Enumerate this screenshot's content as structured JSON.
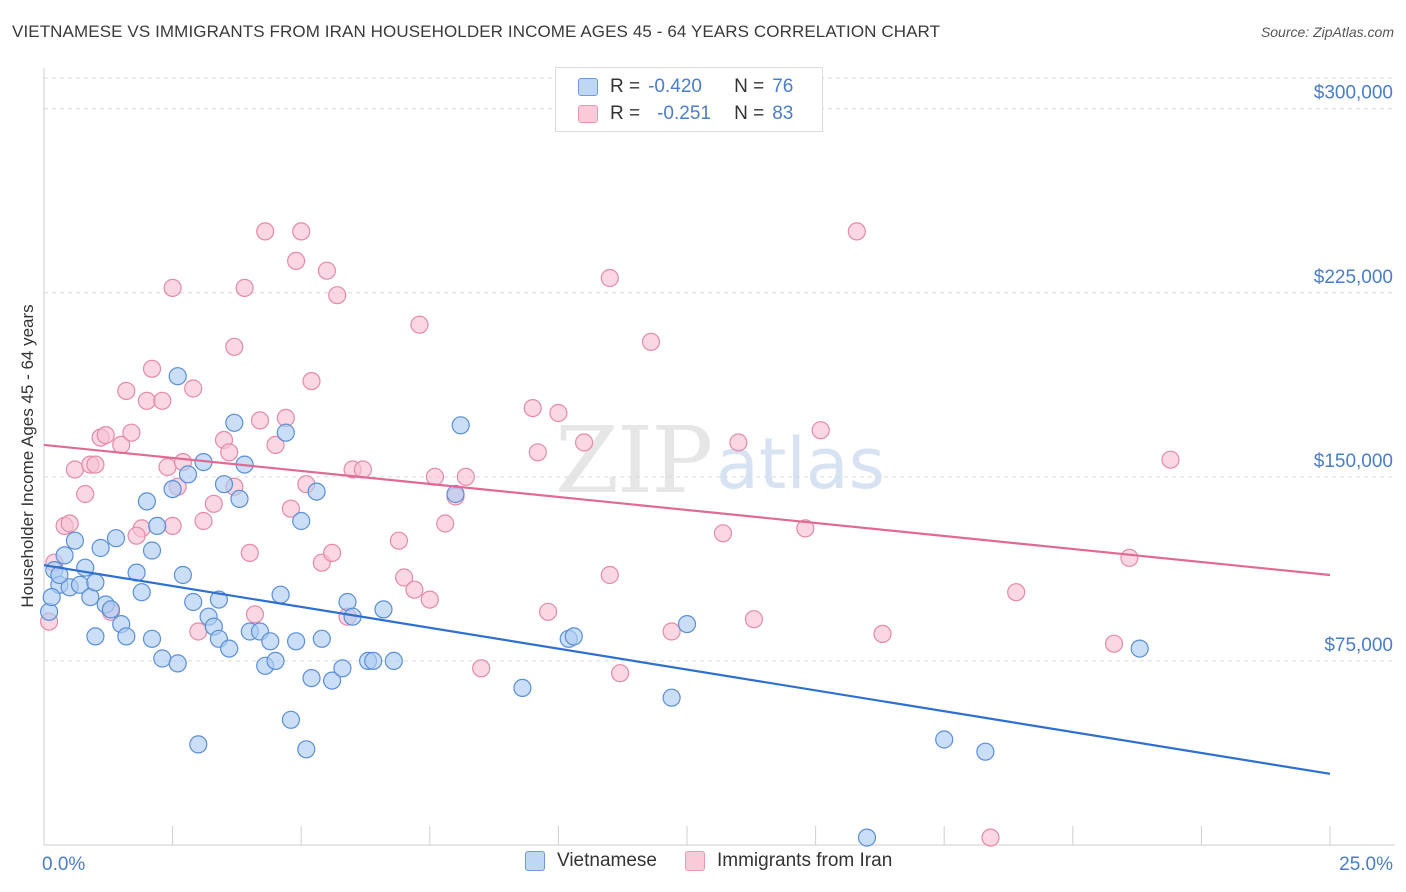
{
  "title": "VIETNAMESE VS IMMIGRANTS FROM IRAN HOUSEHOLDER INCOME AGES 45 - 64 YEARS CORRELATION CHART",
  "source": "Source: ZipAtlas.com",
  "watermark": {
    "zip": "ZIP",
    "atlas": "atlas"
  },
  "legend": {
    "rows": [
      {
        "r_label": "R =",
        "r_value": "-0.420",
        "n_label": "N =",
        "n_value": "76"
      },
      {
        "r_label": "R =",
        "r_value": "-0.251",
        "n_label": "N =",
        "n_value": "83"
      }
    ]
  },
  "bottom_legend": {
    "series1": "Vietnamese",
    "series2": "Immigrants from Iran"
  },
  "colors": {
    "blue_fill": "#aeccf2",
    "blue_stroke": "#5b8fd6",
    "blue_line": "#2e6fd0",
    "pink_fill": "#f7c2d2",
    "pink_stroke": "#e58aa8",
    "pink_line": "#e06a92",
    "tick_label": "#4a7ec7",
    "grid": "#d9d9d9"
  },
  "chart_data": {
    "type": "scatter",
    "title": "VIETNAMESE VS IMMIGRANTS FROM IRAN HOUSEHOLDER INCOME AGES 45 - 64 YEARS CORRELATION CHART",
    "xlabel": "",
    "ylabel": "Householder Income Ages 45 - 64 years",
    "xlim": [
      0,
      25
    ],
    "ylim": [
      0,
      312500
    ],
    "x_tick_labels": [
      "0.0%",
      "25.0%"
    ],
    "y_ticks": [
      75000,
      150000,
      225000,
      300000
    ],
    "y_tick_labels": [
      "$75,000",
      "$150,000",
      "$225,000",
      "$300,000"
    ],
    "grid": true,
    "legend_position": "top-center",
    "series": [
      {
        "name": "Vietnamese",
        "r": -0.42,
        "n": 76,
        "trend": {
          "x": [
            0,
            25
          ],
          "y": [
            114000,
            29000
          ]
        },
        "points": [
          [
            0.1,
            95000
          ],
          [
            0.2,
            112000
          ],
          [
            0.3,
            106000
          ],
          [
            0.4,
            118000
          ],
          [
            0.5,
            105000
          ],
          [
            0.6,
            124000
          ],
          [
            0.7,
            106000
          ],
          [
            0.8,
            113000
          ],
          [
            0.9,
            101000
          ],
          [
            1.0,
            85000
          ],
          [
            1.1,
            121000
          ],
          [
            1.2,
            98000
          ],
          [
            1.3,
            96000
          ],
          [
            1.4,
            125000
          ],
          [
            1.5,
            90000
          ],
          [
            1.6,
            85000
          ],
          [
            1.8,
            111000
          ],
          [
            1.9,
            103000
          ],
          [
            2.0,
            140000
          ],
          [
            2.1,
            120000
          ],
          [
            2.1,
            84000
          ],
          [
            2.2,
            130000
          ],
          [
            2.3,
            76000
          ],
          [
            2.5,
            145000
          ],
          [
            2.6,
            191000
          ],
          [
            2.6,
            74000
          ],
          [
            2.8,
            151000
          ],
          [
            2.9,
            99000
          ],
          [
            3.1,
            156000
          ],
          [
            3.2,
            93000
          ],
          [
            3.3,
            89000
          ],
          [
            3.4,
            84000
          ],
          [
            3.5,
            147000
          ],
          [
            3.6,
            80000
          ],
          [
            3.7,
            172000
          ],
          [
            3.8,
            141000
          ],
          [
            3.9,
            155000
          ],
          [
            4.0,
            87000
          ],
          [
            4.2,
            87000
          ],
          [
            4.3,
            73000
          ],
          [
            4.4,
            83000
          ],
          [
            4.5,
            75000
          ],
          [
            4.6,
            102000
          ],
          [
            4.7,
            168000
          ],
          [
            4.8,
            51000
          ],
          [
            4.9,
            83000
          ],
          [
            5.0,
            132000
          ],
          [
            5.1,
            39000
          ],
          [
            5.2,
            68000
          ],
          [
            5.3,
            144000
          ],
          [
            5.4,
            84000
          ],
          [
            5.6,
            67000
          ],
          [
            5.8,
            72000
          ],
          [
            5.9,
            99000
          ],
          [
            6.0,
            93000
          ],
          [
            6.3,
            75000
          ],
          [
            6.4,
            75000
          ],
          [
            6.6,
            96000
          ],
          [
            6.8,
            75000
          ],
          [
            3.0,
            41000
          ],
          [
            8.0,
            143000
          ],
          [
            8.1,
            171000
          ],
          [
            9.3,
            64000
          ],
          [
            10.2,
            84000
          ],
          [
            10.3,
            85000
          ],
          [
            12.2,
            60000
          ],
          [
            12.5,
            90000
          ],
          [
            16.0,
            3000
          ],
          [
            17.5,
            43000
          ],
          [
            18.3,
            38000
          ],
          [
            21.3,
            80000
          ],
          [
            0.3,
            110000
          ],
          [
            1.0,
            107000
          ],
          [
            2.7,
            110000
          ],
          [
            3.4,
            100000
          ],
          [
            0.15,
            101000
          ]
        ]
      },
      {
        "name": "Immigrants from Iran",
        "r": -0.251,
        "n": 83,
        "trend": {
          "x": [
            0,
            25
          ],
          "y": [
            163000,
            110000
          ]
        },
        "points": [
          [
            0.1,
            91000
          ],
          [
            0.2,
            115000
          ],
          [
            0.4,
            130000
          ],
          [
            0.5,
            131000
          ],
          [
            0.6,
            153000
          ],
          [
            0.8,
            143000
          ],
          [
            0.9,
            155000
          ],
          [
            1.0,
            155000
          ],
          [
            1.1,
            166000
          ],
          [
            1.2,
            167000
          ],
          [
            1.3,
            95000
          ],
          [
            1.5,
            163000
          ],
          [
            1.6,
            185000
          ],
          [
            1.7,
            168000
          ],
          [
            1.9,
            129000
          ],
          [
            2.0,
            181000
          ],
          [
            2.1,
            194000
          ],
          [
            2.3,
            181000
          ],
          [
            2.4,
            154000
          ],
          [
            2.5,
            130000
          ],
          [
            2.5,
            227000
          ],
          [
            2.6,
            146000
          ],
          [
            2.7,
            156000
          ],
          [
            2.9,
            186000
          ],
          [
            3.0,
            87000
          ],
          [
            3.1,
            132000
          ],
          [
            3.3,
            139000
          ],
          [
            3.5,
            165000
          ],
          [
            3.6,
            160000
          ],
          [
            3.7,
            203000
          ],
          [
            3.9,
            227000
          ],
          [
            4.0,
            119000
          ],
          [
            4.1,
            94000
          ],
          [
            4.2,
            173000
          ],
          [
            4.3,
            250000
          ],
          [
            4.5,
            163000
          ],
          [
            4.7,
            174000
          ],
          [
            4.8,
            137000
          ],
          [
            4.9,
            238000
          ],
          [
            5.0,
            250000
          ],
          [
            5.1,
            147000
          ],
          [
            5.2,
            189000
          ],
          [
            5.4,
            115000
          ],
          [
            5.5,
            234000
          ],
          [
            5.6,
            119000
          ],
          [
            5.7,
            224000
          ],
          [
            6.0,
            153000
          ],
          [
            6.2,
            153000
          ],
          [
            6.9,
            124000
          ],
          [
            7.0,
            109000
          ],
          [
            7.2,
            104000
          ],
          [
            7.3,
            212000
          ],
          [
            7.5,
            100000
          ],
          [
            7.6,
            150000
          ],
          [
            7.8,
            131000
          ],
          [
            8.0,
            142000
          ],
          [
            8.2,
            150000
          ],
          [
            8.5,
            72000
          ],
          [
            9.5,
            178000
          ],
          [
            9.6,
            160000
          ],
          [
            9.8,
            95000
          ],
          [
            10.0,
            176000
          ],
          [
            10.5,
            164000
          ],
          [
            11.0,
            110000
          ],
          [
            11.2,
            70000
          ],
          [
            11.8,
            205000
          ],
          [
            12.2,
            87000
          ],
          [
            13.2,
            127000
          ],
          [
            13.5,
            164000
          ],
          [
            13.8,
            92000
          ],
          [
            14.8,
            129000
          ],
          [
            15.1,
            169000
          ],
          [
            15.8,
            250000
          ],
          [
            16.3,
            86000
          ],
          [
            18.4,
            3000
          ],
          [
            18.9,
            103000
          ],
          [
            20.8,
            82000
          ],
          [
            21.1,
            117000
          ],
          [
            21.9,
            157000
          ],
          [
            11.0,
            231000
          ],
          [
            5.9,
            93000
          ],
          [
            3.7,
            146000
          ],
          [
            1.8,
            126000
          ]
        ]
      }
    ]
  }
}
